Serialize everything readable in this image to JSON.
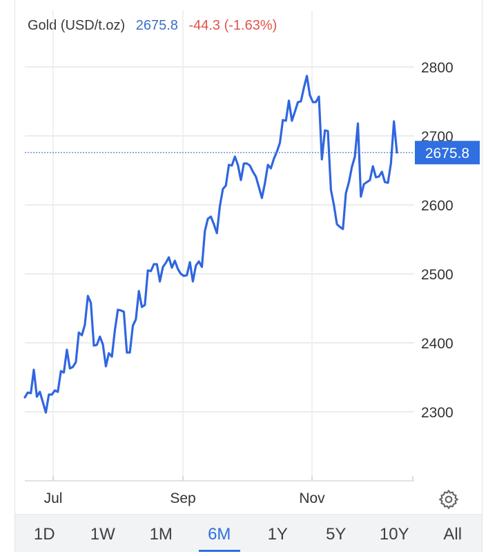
{
  "header": {
    "title": "Gold (USD/t.oz)",
    "price": "2675.8",
    "change": "-44.3 (-1.63%)",
    "price_color": "#3b6fc9",
    "change_color": "#e0534a"
  },
  "tabs": [
    {
      "label": "1D",
      "active": false
    },
    {
      "label": "1W",
      "active": false
    },
    {
      "label": "1M",
      "active": false
    },
    {
      "label": "6M",
      "active": true
    },
    {
      "label": "1Y",
      "active": false
    },
    {
      "label": "5Y",
      "active": false
    },
    {
      "label": "10Y",
      "active": false
    },
    {
      "label": "All",
      "active": false
    }
  ],
  "settings_icon": "gear-icon",
  "chart_data": {
    "type": "line",
    "series": [
      {
        "line_color": "#2f66e0",
        "values": [
          2321,
          2328,
          2327,
          2361,
          2322,
          2329,
          2314,
          2299,
          2325,
          2325,
          2331,
          2329,
          2359,
          2357,
          2390,
          2363,
          2365,
          2372,
          2415,
          2411,
          2426,
          2468,
          2458,
          2396,
          2397,
          2409,
          2398,
          2366,
          2385,
          2380,
          2418,
          2448,
          2447,
          2445,
          2386,
          2386,
          2425,
          2434,
          2475,
          2452,
          2455,
          2505,
          2504,
          2514,
          2514,
          2489,
          2510,
          2516,
          2524,
          2509,
          2519,
          2507,
          2500,
          2497,
          2498,
          2517,
          2489,
          2512,
          2518,
          2510,
          2562,
          2580,
          2583,
          2572,
          2559,
          2598,
          2623,
          2628,
          2658,
          2657,
          2670,
          2658,
          2636,
          2660,
          2660,
          2657,
          2648,
          2641,
          2626,
          2610,
          2631,
          2658,
          2653,
          2667,
          2677,
          2690,
          2723,
          2722,
          2751,
          2722,
          2735,
          2749,
          2750,
          2770,
          2787,
          2759,
          2749,
          2749,
          2757,
          2666,
          2708,
          2707,
          2622,
          2600,
          2572,
          2568,
          2565,
          2617,
          2633,
          2655,
          2670,
          2718,
          2612,
          2630,
          2633,
          2636,
          2656,
          2640,
          2641,
          2648,
          2633,
          2632,
          2660,
          2721,
          2676
        ]
      }
    ],
    "ylim": [
      2200,
      2820
    ],
    "y_ticks": [
      2300,
      2400,
      2500,
      2600,
      2700,
      2800
    ],
    "x_tick_labels": [
      "Jul",
      "Sep",
      "Nov"
    ],
    "last_value": 2675.8,
    "last_value_label": "2675.8",
    "grid": true,
    "label_bg_color": "#2f6fe0"
  }
}
